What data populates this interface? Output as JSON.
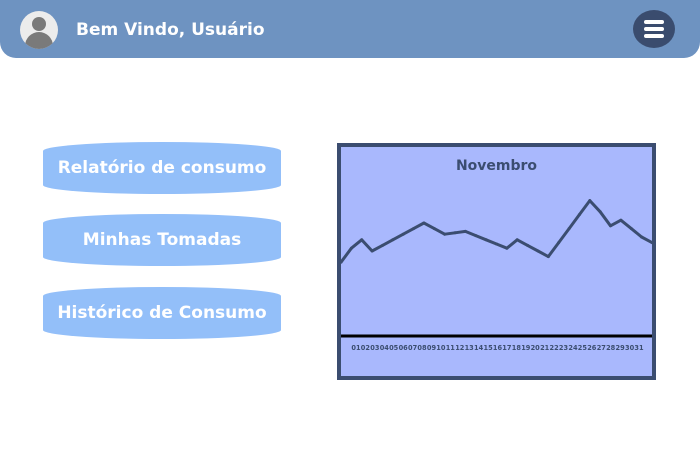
{
  "header": {
    "welcome_text": "Bem Vindo, Usuário",
    "avatar_icon": "user-avatar-icon",
    "menu_icon": "hamburger-menu-icon",
    "background_color": "#6e93c1"
  },
  "sidebar": {
    "buttons": [
      {
        "label": "Relatório de consumo"
      },
      {
        "label": "Minhas Tomadas"
      },
      {
        "label": "Histórico de Consumo"
      }
    ],
    "button_color": "#93bff9"
  },
  "chart_data": {
    "type": "line",
    "title": "Novembro",
    "categories": [
      "01",
      "02",
      "03",
      "04",
      "05",
      "06",
      "07",
      "08",
      "09",
      "10",
      "11",
      "12",
      "13",
      "14",
      "15",
      "16",
      "17",
      "18",
      "19",
      "20",
      "21",
      "22",
      "23",
      "24",
      "25",
      "26",
      "27",
      "28",
      "29",
      "30",
      "31"
    ],
    "values": [
      26,
      31,
      34,
      30,
      32,
      34,
      36,
      38,
      40,
      38,
      36,
      36.5,
      37,
      35.5,
      34,
      32.5,
      31,
      34,
      32,
      30,
      28,
      33,
      38,
      43,
      48,
      44,
      39,
      41,
      38,
      35,
      33
    ],
    "ylim": [
      0,
      60
    ],
    "grid": false,
    "line_color": "#3b4d70",
    "background_color": "#a9b8fd"
  }
}
